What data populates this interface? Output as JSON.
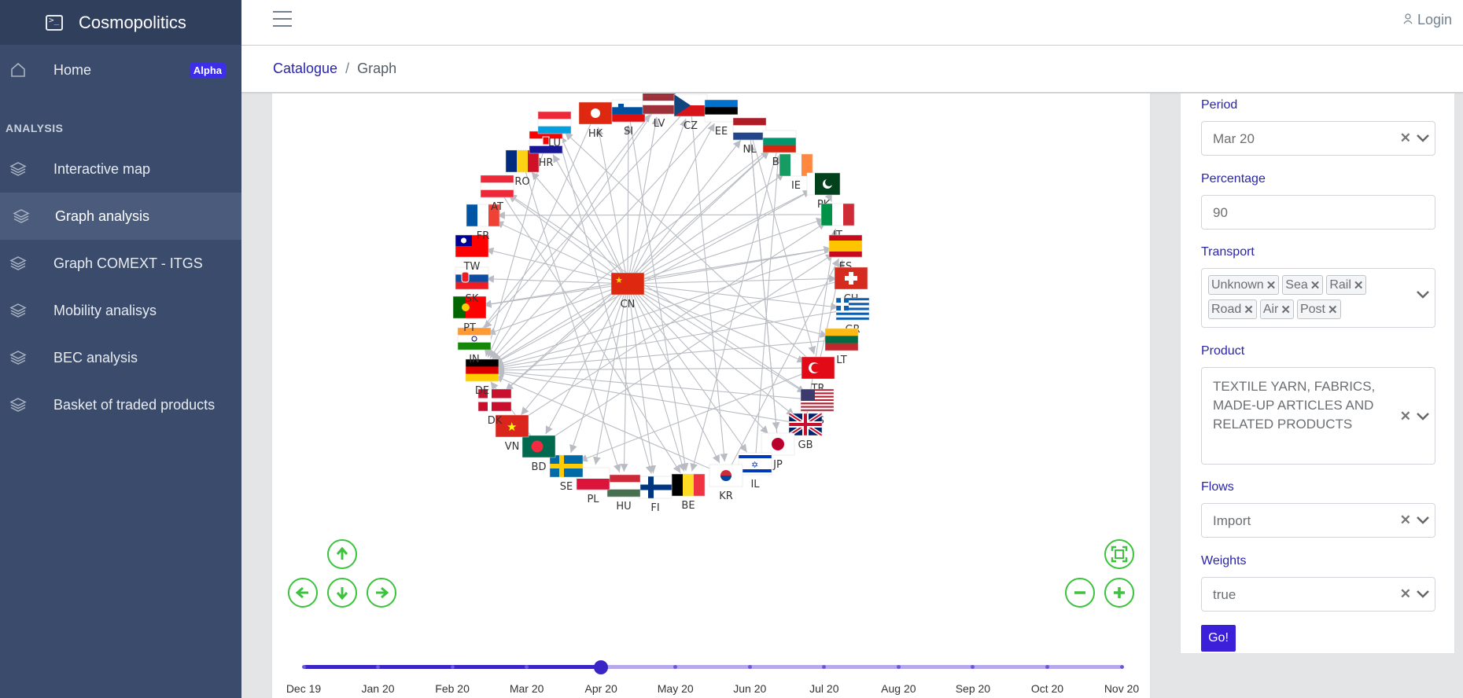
{
  "app": {
    "title": "Cosmopolitics"
  },
  "sidebar": {
    "home": {
      "label": "Home",
      "badge": "Alpha"
    },
    "section_title": "ANALYSIS",
    "items": [
      {
        "label": "Interactive map"
      },
      {
        "label": "Graph analysis"
      },
      {
        "label": "Graph COMEXT - ITGS"
      },
      {
        "label": "Mobility analisys"
      },
      {
        "label": "BEC analysis"
      },
      {
        "label": "Basket of traded products"
      }
    ],
    "active_item": "Graph analysis"
  },
  "header": {
    "login_label": "Login"
  },
  "breadcrumb": {
    "root": "Catalogue",
    "separator": "/",
    "current": "Graph"
  },
  "graph": {
    "center": {
      "code": "CN",
      "icon": "flag-cn"
    },
    "nodes": [
      "HK",
      "SI",
      "LV",
      "CZ",
      "EE",
      "NL",
      "BG",
      "IE",
      "PK",
      "IT",
      "ES",
      "CH",
      "GR",
      "LT",
      "TR",
      "US",
      "GB",
      "JP",
      "IL",
      "KR",
      "BE",
      "FI",
      "HU",
      "PL",
      "SE",
      "BD",
      "VN",
      "DK",
      "DE",
      "IN",
      "PT",
      "SK",
      "TW",
      "FR",
      "AT",
      "RO",
      "HR",
      "LU"
    ],
    "edge_color": "#b9bcc3",
    "nav_icons": [
      "arrow-up-icon",
      "arrow-left-icon",
      "arrow-down-icon",
      "arrow-right-icon",
      "fit-icon",
      "zoom-out-icon",
      "zoom-in-icon"
    ]
  },
  "timeline": {
    "labels": [
      "Dec 19",
      "Jan 20",
      "Feb 20",
      "Mar 20",
      "Apr 20",
      "May 20",
      "Jun 20",
      "Jul 20",
      "Aug 20",
      "Sep 20",
      "Oct 20",
      "Nov 20"
    ],
    "selected": "Apr 20",
    "selected_index": 4,
    "accent": "#3924c6"
  },
  "filters": {
    "period": {
      "label": "Period",
      "value": "Mar 20"
    },
    "percentage": {
      "label": "Percentage",
      "value": "90"
    },
    "transport": {
      "label": "Transport",
      "tags": [
        "Unknown",
        "Sea",
        "Rail",
        "Road",
        "Air",
        "Post"
      ]
    },
    "product": {
      "label": "Product",
      "value": "TEXTILE YARN, FABRICS, MADE-UP ARTICLES AND RELATED PRODUCTS"
    },
    "flows": {
      "label": "Flows",
      "value": "Import"
    },
    "weights": {
      "label": "Weights",
      "value": "true"
    },
    "submit_label": "Go!"
  }
}
